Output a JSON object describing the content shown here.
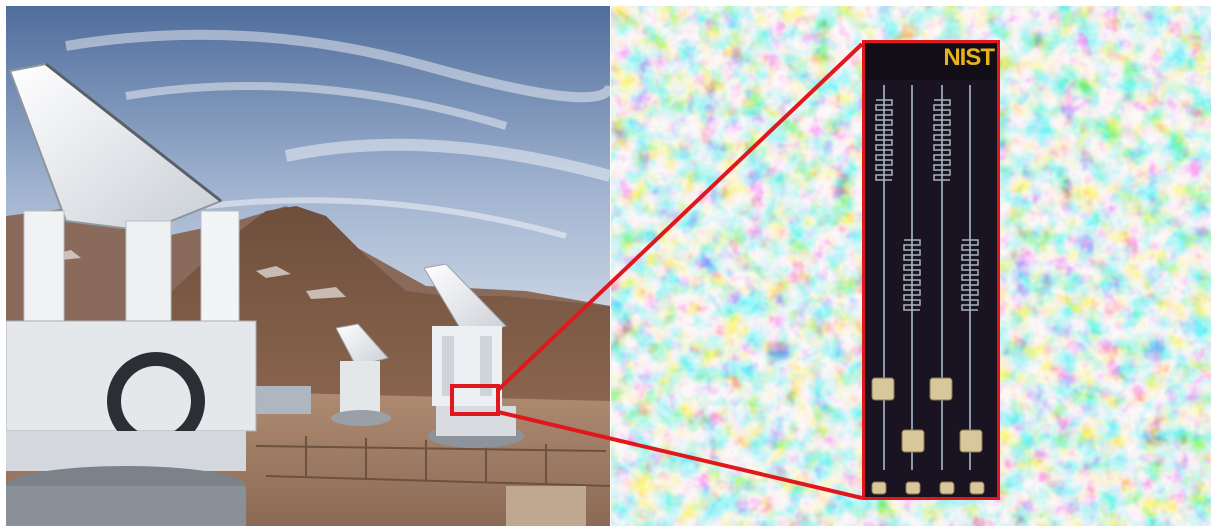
{
  "figure": {
    "left_panel": {
      "subject": "telescope-site-photo"
    },
    "right_panel": {
      "subject": "cmb-temperature-map"
    },
    "inset": {
      "logo_text": "NIST"
    },
    "colors": {
      "sky_top": "#4f6d9c",
      "sky_bottom": "#aebfd6",
      "mountain": "#7a5a44",
      "ground": "#a58066",
      "telescope_white": "#eef0f2",
      "highlight_red": "#e0171d",
      "cmb_blue": "#1f4fd2",
      "cmb_orange": "#d6731e",
      "chip_bg": "#1a1422",
      "logo_gold": "#e8b21c"
    },
    "icons": [
      "telescope",
      "detector-chip"
    ]
  }
}
